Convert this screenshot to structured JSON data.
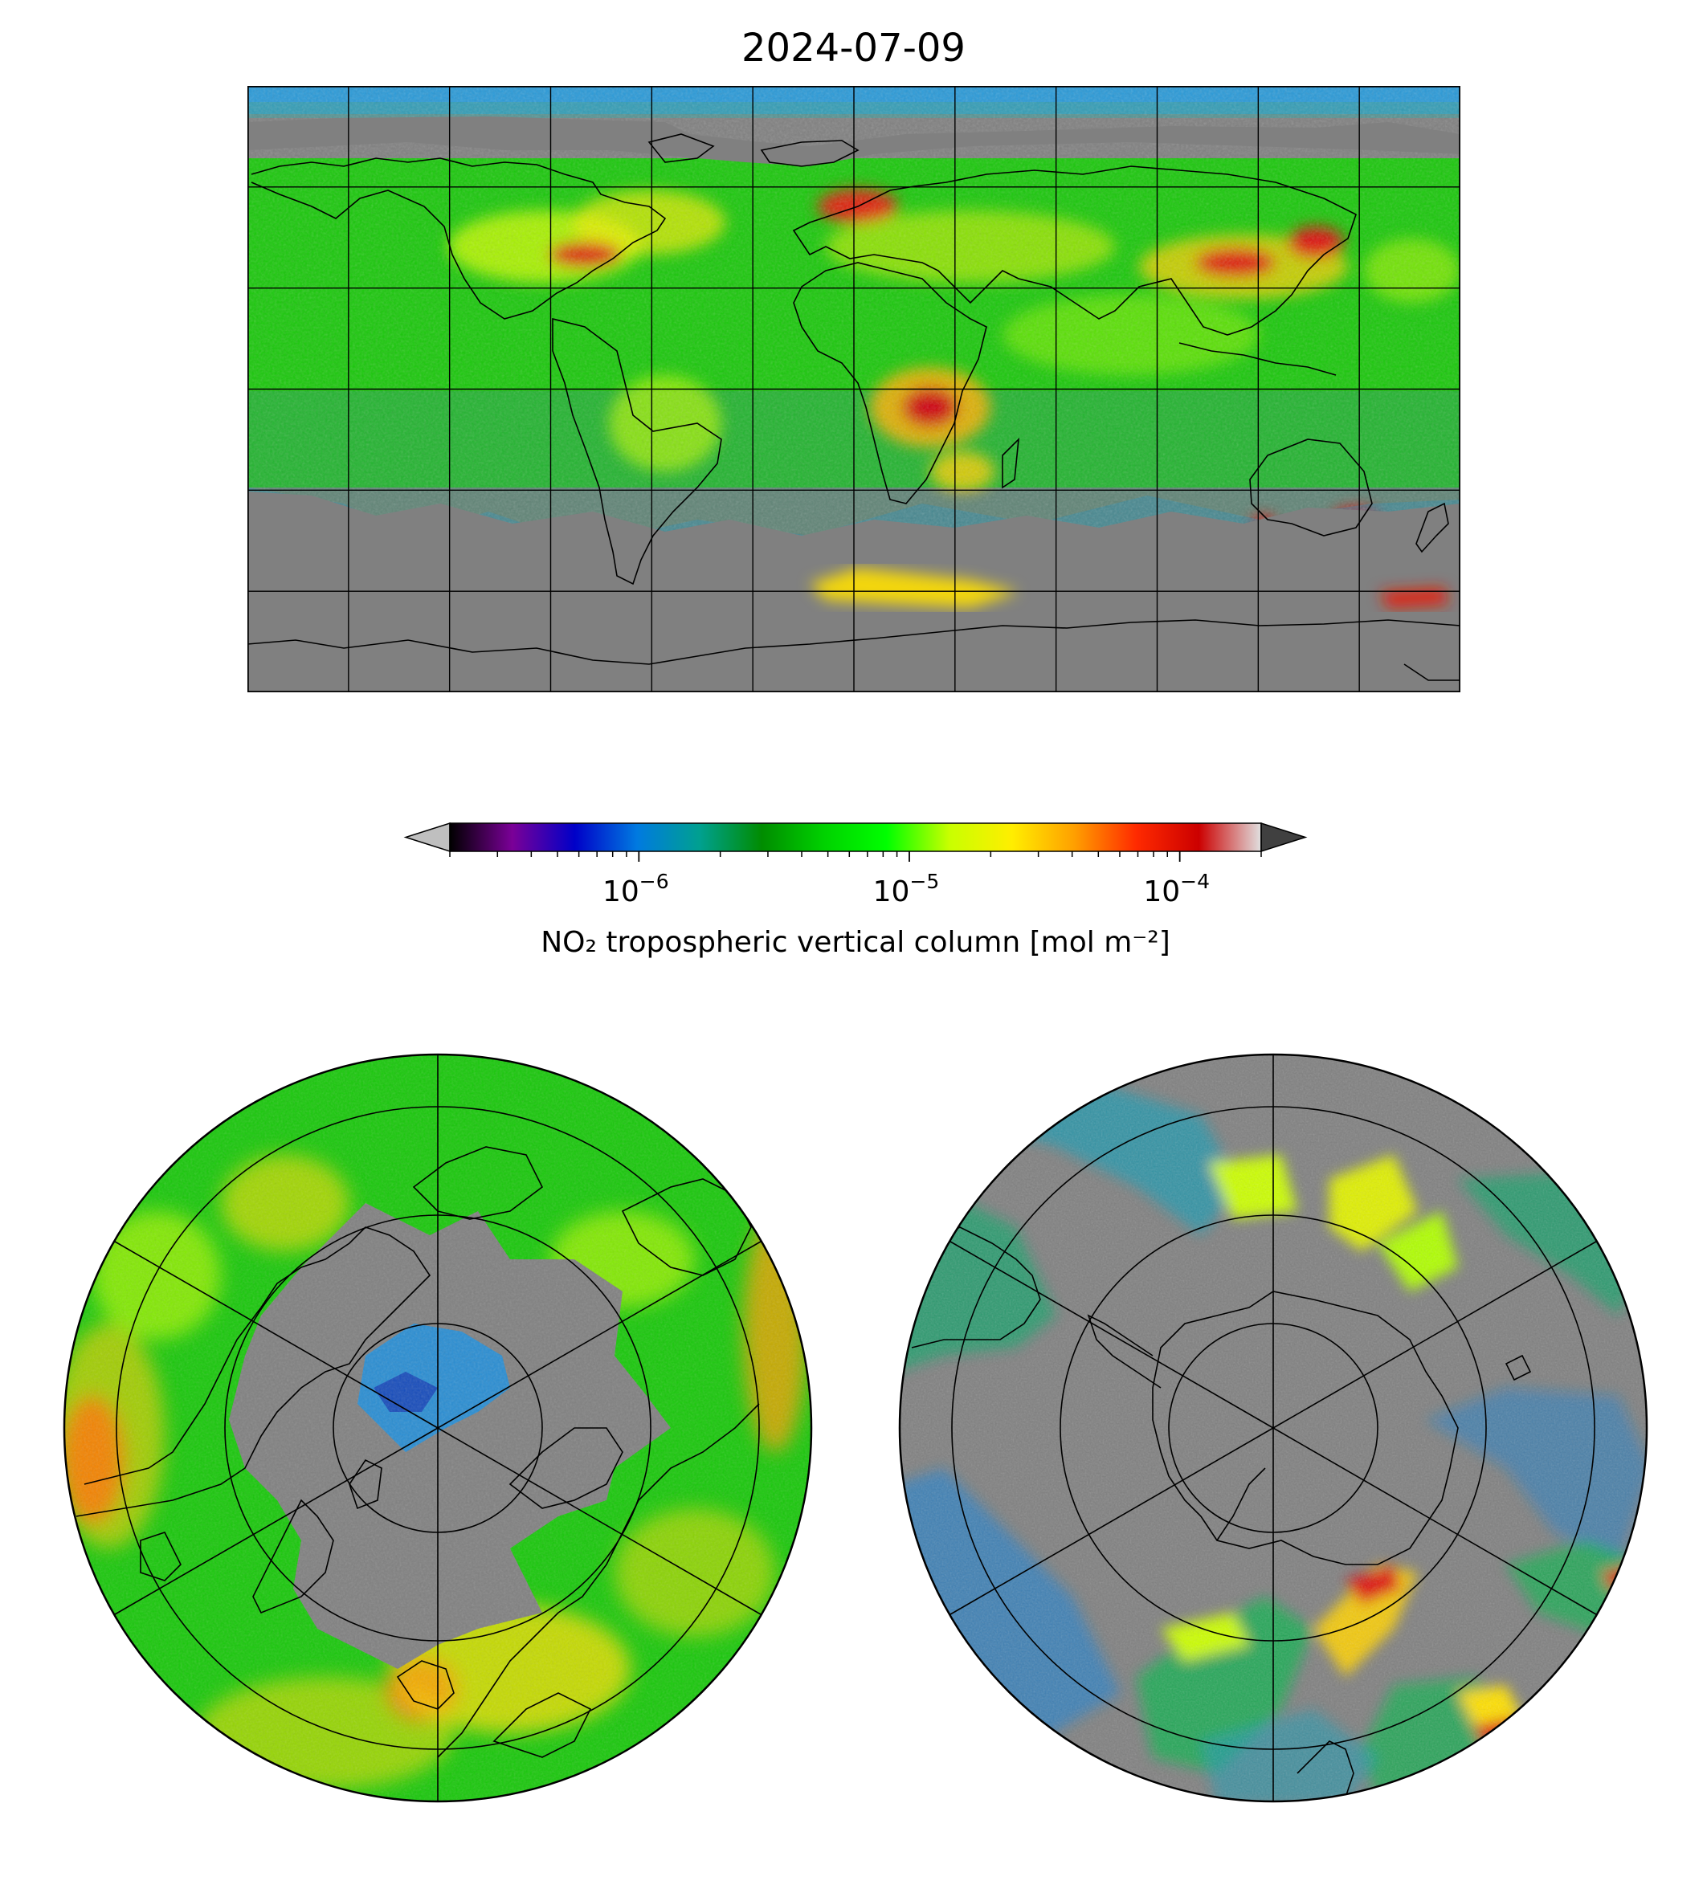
{
  "title": "2024-07-09",
  "colorbar": {
    "label": "NO₂ tropospheric vertical column [mol m⁻²]",
    "scale": "log",
    "range": [
      2e-07,
      0.0002
    ],
    "extend": "both",
    "ticks": [
      {
        "value": 1e-06,
        "base": "10",
        "exp": "−6"
      },
      {
        "value": 1e-05,
        "base": "10",
        "exp": "−5"
      },
      {
        "value": 0.0001,
        "base": "10",
        "exp": "−4"
      }
    ],
    "stops": [
      "#000000",
      "#7a0097",
      "#0000c8",
      "#007ae0",
      "#00a090",
      "#008c00",
      "#00d200",
      "#00ff00",
      "#c8ff00",
      "#ffee00",
      "#ffa000",
      "#ff2a00",
      "#cc0000",
      "#e0e0e0"
    ],
    "under_color": "#bfbfbf",
    "over_color": "#404040"
  },
  "maps": {
    "world": {
      "projection": "plate-carree",
      "gridline_spacing_deg": 30,
      "missing_color": "#808080"
    },
    "north": {
      "projection": "north-polar-stereographic",
      "missing_color": "#808080"
    },
    "south": {
      "projection": "south-polar-stereographic",
      "missing_color": "#808080"
    }
  }
}
